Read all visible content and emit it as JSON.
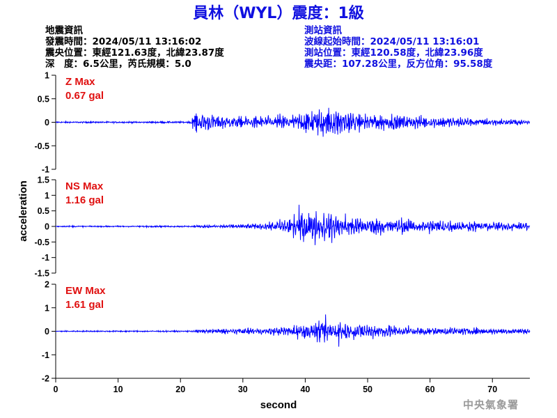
{
  "title": "員林（WYL）震度：1級",
  "quake_info": {
    "heading": "地震資訊",
    "time": "發震時間：2024/05/11 13:16:02",
    "location": "震央位置：東經121.63度，北緯23.87度",
    "depth_magnitude": "深　度：6.5公里，芮氏規模：5.0"
  },
  "station_info": {
    "heading": "測站資訊",
    "wave_start": "波線起始時間：2024/05/11 13:16:01",
    "location": "測站位置：東經120.58度，北緯23.96度",
    "distance": "震央距：107.28公里，反方位角：95.58度"
  },
  "agency": "中央氣象署",
  "colors": {
    "title": "#1010e0",
    "station_info": "#1010e0",
    "max_label": "#e01010",
    "trace": "#0000ff"
  },
  "chart_data": {
    "type": "line",
    "xlabel": "second",
    "ylabel": "acceleration",
    "xlim": [
      0,
      76
    ],
    "xticks": [
      0,
      10,
      20,
      30,
      40,
      50,
      60,
      70
    ],
    "grid": false,
    "panels": [
      {
        "component": "Z",
        "max_label": "Z Max",
        "max_value": "0.67 gal",
        "ylim": [
          -1,
          1
        ],
        "yticks": [
          1,
          0.5,
          0,
          -0.5,
          -1
        ],
        "p_arrival": 21.8,
        "envelope": [
          [
            0,
            0.03
          ],
          [
            21.5,
            0.035
          ],
          [
            21.8,
            0.3
          ],
          [
            23,
            0.38
          ],
          [
            25,
            0.3
          ],
          [
            28,
            0.22
          ],
          [
            31,
            0.22
          ],
          [
            34,
            0.25
          ],
          [
            36,
            0.3
          ],
          [
            39,
            0.35
          ],
          [
            41,
            0.45
          ],
          [
            43,
            0.6
          ],
          [
            45,
            0.5
          ],
          [
            47,
            0.45
          ],
          [
            50,
            0.38
          ],
          [
            53,
            0.3
          ],
          [
            56,
            0.26
          ],
          [
            60,
            0.22
          ],
          [
            64,
            0.2
          ],
          [
            68,
            0.15
          ],
          [
            72,
            0.12
          ],
          [
            76,
            0.1
          ]
        ]
      },
      {
        "component": "NS",
        "max_label": "NS Max",
        "max_value": "1.16 gal",
        "ylim": [
          -1.5,
          1.5
        ],
        "yticks": [
          1.5,
          1,
          0.5,
          0,
          -0.5,
          -1,
          -1.5
        ],
        "p_arrival": 21.8,
        "envelope": [
          [
            0,
            0.04
          ],
          [
            21.5,
            0.05
          ],
          [
            24,
            0.08
          ],
          [
            28,
            0.1
          ],
          [
            32,
            0.15
          ],
          [
            35,
            0.25
          ],
          [
            37,
            0.5
          ],
          [
            38,
            0.8
          ],
          [
            40,
            0.85
          ],
          [
            42,
            0.9
          ],
          [
            44,
            0.8
          ],
          [
            47,
            0.6
          ],
          [
            50,
            0.5
          ],
          [
            54,
            0.45
          ],
          [
            58,
            0.4
          ],
          [
            62,
            0.35
          ],
          [
            66,
            0.3
          ],
          [
            70,
            0.25
          ],
          [
            76,
            0.22
          ]
        ]
      },
      {
        "component": "EW",
        "max_label": "EW Max",
        "max_value": "1.61 gal",
        "ylim": [
          -2,
          2
        ],
        "yticks": [
          2,
          1,
          0,
          -1,
          -2
        ],
        "p_arrival": 21.8,
        "envelope": [
          [
            0,
            0.05
          ],
          [
            21.5,
            0.06
          ],
          [
            23,
            0.12
          ],
          [
            26,
            0.2
          ],
          [
            30,
            0.22
          ],
          [
            34,
            0.25
          ],
          [
            38,
            0.4
          ],
          [
            41,
            0.6
          ],
          [
            43,
            0.85
          ],
          [
            45,
            0.8
          ],
          [
            47,
            0.65
          ],
          [
            50,
            0.55
          ],
          [
            54,
            0.45
          ],
          [
            58,
            0.38
          ],
          [
            62,
            0.3
          ],
          [
            66,
            0.25
          ],
          [
            70,
            0.22
          ],
          [
            76,
            0.2
          ]
        ]
      }
    ]
  }
}
